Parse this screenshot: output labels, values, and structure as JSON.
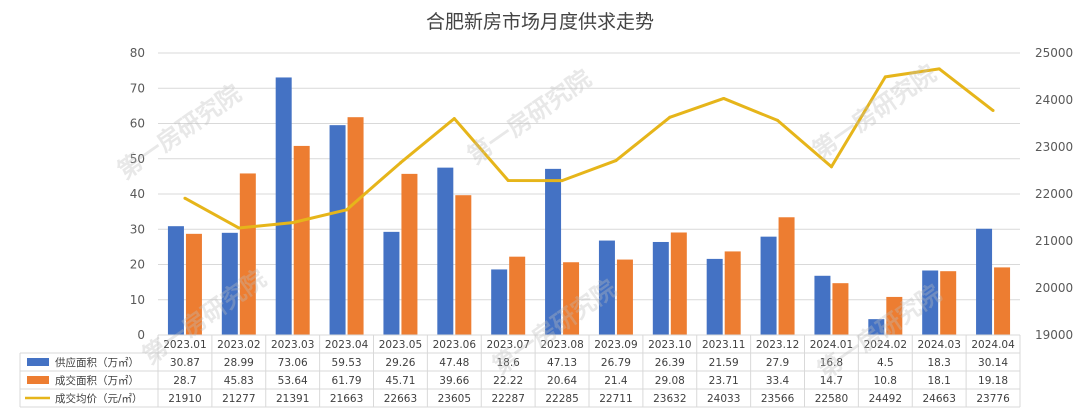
{
  "chart_data": {
    "type": "bar",
    "title": "合肥新房市场月度供求走势",
    "categories": [
      "2023.01",
      "2023.02",
      "2023.03",
      "2023.04",
      "2023.05",
      "2023.06",
      "2023.07",
      "2023.08",
      "2023.09",
      "2023.10",
      "2023.11",
      "2023.12",
      "2024.01",
      "2024.02",
      "2024.03",
      "2024.04"
    ],
    "series": [
      {
        "name": "供应面积（万㎡）",
        "type": "bar",
        "axis": "left",
        "color": "#4472c4",
        "values": [
          30.87,
          28.99,
          73.06,
          59.53,
          29.26,
          47.48,
          18.6,
          47.13,
          26.79,
          26.39,
          21.59,
          27.9,
          16.8,
          4.5,
          18.3,
          30.14
        ]
      },
      {
        "name": "成交面积（万㎡）",
        "type": "bar",
        "axis": "left",
        "color": "#ed7d31",
        "values": [
          28.7,
          45.83,
          53.64,
          61.79,
          45.71,
          39.66,
          22.22,
          20.64,
          21.4,
          29.08,
          23.71,
          33.4,
          14.7,
          10.8,
          18.1,
          19.18
        ]
      },
      {
        "name": "成交均价（元/㎡）",
        "type": "line",
        "axis": "right",
        "color": "#e6b51a",
        "values": [
          21910,
          21277,
          21391,
          21663,
          22663,
          23605,
          22287,
          22285,
          22711,
          23632,
          24033,
          23566,
          22580,
          24492,
          24663,
          23776
        ]
      }
    ],
    "y_left": {
      "min": 0,
      "max": 80,
      "ticks": [
        0,
        10,
        20,
        30,
        40,
        50,
        60,
        70,
        80
      ]
    },
    "y_right": {
      "min": 19000,
      "max": 25000,
      "ticks": [
        19000,
        20000,
        21000,
        22000,
        23000,
        24000,
        25000
      ]
    },
    "grid": true,
    "legend": "data-table-left"
  },
  "watermark": "第一房研究院"
}
